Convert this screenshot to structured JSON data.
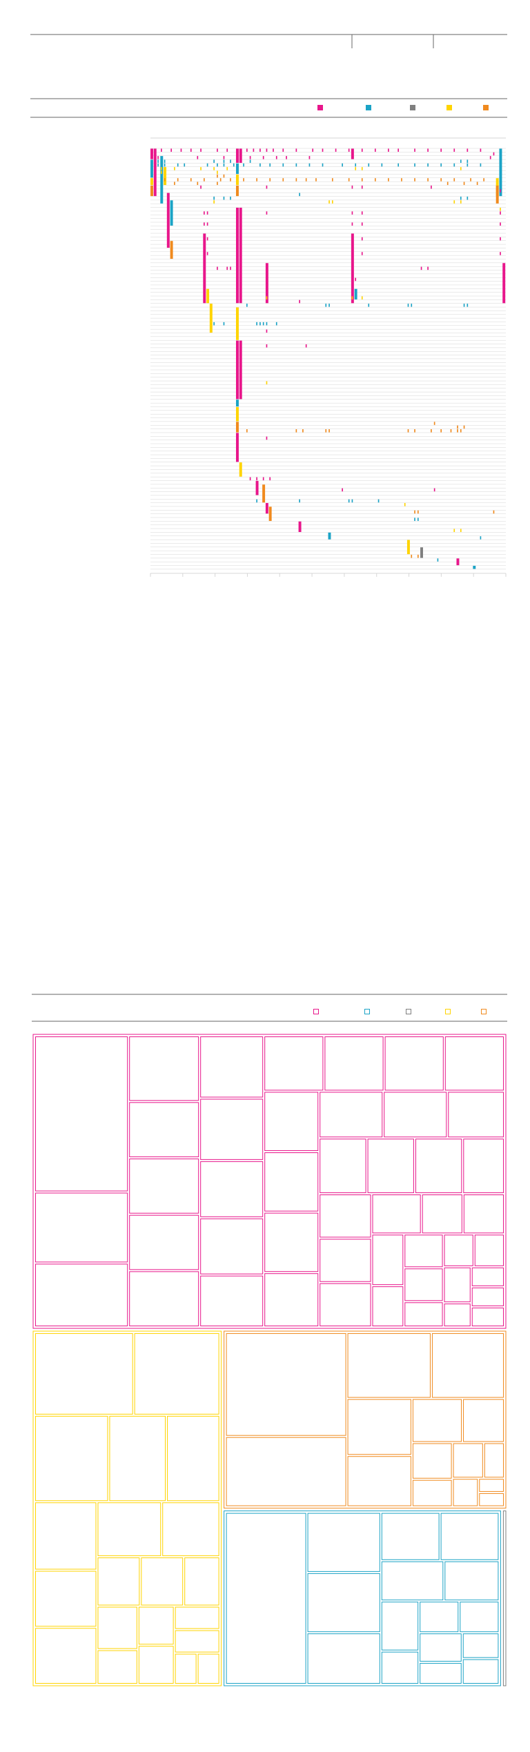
{
  "colors": {
    "magenta": "#e8168b",
    "cyan": "#1ba3c6",
    "gray": "#7f7f7f",
    "yellow": "#ffd400",
    "orange": "#f08a1e",
    "row_line": "#d6d6d6",
    "rule_dark": "#666666",
    "rule_light": "#aaaaaa"
  },
  "legend": {
    "keys": [
      "magenta",
      "cyan",
      "gray",
      "yellow",
      "orange"
    ]
  },
  "chart_data": [
    {
      "type": "heatmap",
      "title": "",
      "xlabel": "",
      "ylabel": "",
      "grid": true,
      "rows": 114,
      "columns": 108,
      "series": [
        "magenta",
        "cyan",
        "gray",
        "yellow",
        "orange"
      ],
      "segments": [
        {
          "rows": [
            0,
            2
          ],
          "col": 0,
          "series": "magenta"
        },
        {
          "rows": [
            3,
            7
          ],
          "col": 0,
          "series": "cyan"
        },
        {
          "rows": [
            8,
            9
          ],
          "col": 0,
          "series": "yellow"
        },
        {
          "rows": [
            10,
            12
          ],
          "col": 0,
          "series": "orange"
        },
        {
          "rows": [
            0,
            12
          ],
          "col": 1,
          "series": "magenta"
        },
        {
          "rows": [
            2,
            14
          ],
          "col": 3,
          "series": "cyan"
        },
        {
          "rows": [
            5,
            9
          ],
          "col": 4,
          "series": "yellow"
        },
        {
          "rows": [
            12,
            26
          ],
          "col": 5,
          "series": "magenta"
        },
        {
          "rows": [
            14,
            20
          ],
          "col": 6,
          "series": "cyan"
        },
        {
          "rows": [
            25,
            29
          ],
          "col": 6,
          "series": "orange"
        },
        {
          "rows": [
            23,
            41
          ],
          "col": 16,
          "series": "magenta"
        },
        {
          "rows": [
            38,
            41
          ],
          "col": 17,
          "series": "yellow"
        },
        {
          "rows": [
            42,
            49
          ],
          "col": 18,
          "series": "yellow"
        },
        {
          "rows": [
            0,
            3
          ],
          "col": 26,
          "series": "magenta"
        },
        {
          "rows": [
            4,
            6
          ],
          "col": 26,
          "series": "cyan"
        },
        {
          "rows": [
            7,
            9
          ],
          "col": 26,
          "series": "yellow"
        },
        {
          "rows": [
            10,
            12
          ],
          "col": 26,
          "series": "orange"
        },
        {
          "rows": [
            16,
            41
          ],
          "col": 26,
          "series": "magenta"
        },
        {
          "rows": [
            43,
            51
          ],
          "col": 26,
          "series": "yellow"
        },
        {
          "rows": [
            52,
            67
          ],
          "col": 26,
          "series": "magenta"
        },
        {
          "rows": [
            68,
            69
          ],
          "col": 26,
          "series": "cyan"
        },
        {
          "rows": [
            70,
            73
          ],
          "col": 26,
          "series": "yellow"
        },
        {
          "rows": [
            74,
            76
          ],
          "col": 26,
          "series": "orange"
        },
        {
          "rows": [
            77,
            84
          ],
          "col": 26,
          "series": "magenta"
        },
        {
          "rows": [
            85,
            88
          ],
          "col": 27,
          "series": "yellow"
        },
        {
          "rows": [
            0,
            3
          ],
          "col": 27,
          "series": "magenta"
        },
        {
          "rows": [
            16,
            41
          ],
          "col": 27,
          "series": "magenta"
        },
        {
          "rows": [
            52,
            67
          ],
          "col": 27,
          "series": "magenta"
        },
        {
          "rows": [
            31,
            41
          ],
          "col": 35,
          "series": "magenta"
        },
        {
          "rows": [
            0,
            2
          ],
          "col": 61,
          "series": "magenta"
        },
        {
          "rows": [
            23,
            41
          ],
          "col": 61,
          "series": "magenta"
        },
        {
          "rows": [
            38,
            40
          ],
          "col": 62,
          "series": "cyan"
        },
        {
          "rows": [
            0,
            12
          ],
          "col": 106,
          "series": "cyan"
        },
        {
          "rows": [
            8,
            12
          ],
          "col": 105,
          "series": "yellow"
        },
        {
          "rows": [
            10,
            14
          ],
          "col": 105,
          "series": "orange"
        },
        {
          "rows": [
            31,
            41
          ],
          "col": 107,
          "series": "magenta"
        },
        {
          "rows": [
            90,
            93
          ],
          "col": 32,
          "series": "magenta"
        },
        {
          "rows": [
            91,
            95
          ],
          "col": 34,
          "series": "orange"
        },
        {
          "rows": [
            96,
            98
          ],
          "col": 35,
          "series": "magenta"
        },
        {
          "rows": [
            97,
            100
          ],
          "col": 36,
          "series": "orange"
        },
        {
          "rows": [
            101,
            103
          ],
          "col": 45,
          "series": "magenta"
        },
        {
          "rows": [
            104,
            105
          ],
          "col": 54,
          "series": "cyan"
        },
        {
          "rows": [
            106,
            109
          ],
          "col": 78,
          "series": "yellow"
        },
        {
          "rows": [
            108,
            110
          ],
          "col": 82,
          "series": "gray"
        },
        {
          "rows": [
            111,
            112
          ],
          "col": 93,
          "series": "magenta"
        },
        {
          "rows": [
            113,
            113
          ],
          "col": 98,
          "series": "cyan"
        }
      ],
      "ticks": [
        {
          "row": 0,
          "series": "magenta",
          "cols": [
            3,
            6,
            9,
            12,
            15,
            20,
            23,
            29,
            31,
            33,
            35,
            37,
            40,
            44,
            49,
            52,
            56,
            60,
            64,
            68,
            72,
            75,
            80,
            84,
            88,
            92,
            96,
            100
          ]
        },
        {
          "row": 1,
          "series": "magenta",
          "cols": [
            104
          ]
        },
        {
          "row": 2,
          "series": "magenta",
          "cols": [
            2,
            14,
            22,
            30,
            34,
            38,
            41,
            48,
            103
          ]
        },
        {
          "row": 3,
          "series": "cyan",
          "cols": [
            2,
            4,
            19,
            22,
            24,
            30,
            94,
            96
          ]
        },
        {
          "row": 4,
          "series": "cyan",
          "cols": [
            2,
            4,
            8,
            10,
            17,
            20,
            22,
            25,
            28,
            33,
            36,
            40,
            44,
            48,
            52,
            58,
            62,
            66,
            70,
            75,
            80,
            84,
            88,
            92,
            96,
            100
          ]
        },
        {
          "row": 5,
          "series": "yellow",
          "cols": [
            3,
            7,
            15,
            19,
            23,
            62,
            64,
            94
          ]
        },
        {
          "row": 6,
          "series": "yellow",
          "cols": [
            3,
            20
          ]
        },
        {
          "row": 7,
          "series": "orange",
          "cols": [
            20,
            22
          ]
        },
        {
          "row": 8,
          "series": "orange",
          "cols": [
            4,
            8,
            12,
            16,
            21,
            24,
            28,
            32,
            36,
            40,
            44,
            47,
            50,
            55,
            60,
            64,
            68,
            72,
            76,
            80,
            84,
            88,
            92,
            97,
            101
          ]
        },
        {
          "row": 9,
          "series": "orange",
          "cols": [
            7,
            14,
            20,
            90,
            95,
            99
          ]
        },
        {
          "row": 10,
          "series": "magenta",
          "cols": [
            15,
            35,
            61,
            64,
            85
          ]
        },
        {
          "row": 11,
          "series": "magenta",
          "cols": [
            106
          ]
        },
        {
          "row": 12,
          "series": "cyan",
          "cols": [
            45
          ]
        },
        {
          "row": 13,
          "series": "cyan",
          "cols": [
            19,
            22,
            24,
            94,
            96
          ]
        },
        {
          "row": 14,
          "series": "yellow",
          "cols": [
            19,
            54,
            55,
            92,
            94
          ]
        },
        {
          "row": 16,
          "series": "yellow",
          "cols": [
            106
          ]
        },
        {
          "row": 17,
          "series": "magenta",
          "cols": [
            16,
            17,
            35,
            61,
            64,
            106
          ]
        },
        {
          "row": 20,
          "series": "magenta",
          "cols": [
            16,
            17,
            61,
            64,
            106
          ]
        },
        {
          "row": 24,
          "series": "magenta",
          "cols": [
            16,
            17,
            61,
            64,
            106
          ]
        },
        {
          "row": 28,
          "series": "magenta",
          "cols": [
            16,
            17,
            61,
            64,
            106
          ]
        },
        {
          "row": 32,
          "series": "magenta",
          "cols": [
            20,
            23,
            24,
            35,
            82,
            84
          ]
        },
        {
          "row": 35,
          "series": "magenta",
          "cols": [
            62
          ]
        },
        {
          "row": 40,
          "series": "yellow",
          "cols": [
            35,
            61,
            64
          ]
        },
        {
          "row": 41,
          "series": "magenta",
          "cols": [
            45
          ]
        },
        {
          "row": 42,
          "series": "cyan",
          "cols": [
            29,
            53,
            54,
            66,
            78,
            79,
            95,
            96
          ]
        },
        {
          "row": 47,
          "series": "cyan",
          "cols": [
            19,
            22,
            32,
            33,
            34,
            35,
            38
          ]
        },
        {
          "row": 49,
          "series": "magenta",
          "cols": [
            35
          ]
        },
        {
          "row": 53,
          "series": "magenta",
          "cols": [
            35,
            47
          ]
        },
        {
          "row": 63,
          "series": "yellow",
          "cols": [
            35
          ]
        },
        {
          "row": 74,
          "series": "orange",
          "cols": [
            86
          ]
        },
        {
          "row": 75,
          "series": "orange",
          "cols": [
            93,
            95
          ]
        },
        {
          "row": 76,
          "series": "orange",
          "cols": [
            29,
            44,
            46,
            53,
            54,
            78,
            80,
            85,
            88,
            91,
            93,
            94
          ]
        },
        {
          "row": 78,
          "series": "magenta",
          "cols": [
            35
          ]
        },
        {
          "row": 89,
          "series": "magenta",
          "cols": [
            30,
            32,
            34,
            36
          ]
        },
        {
          "row": 92,
          "series": "magenta",
          "cols": [
            58,
            86
          ]
        },
        {
          "row": 95,
          "series": "cyan",
          "cols": [
            32,
            45,
            60,
            61,
            69
          ]
        },
        {
          "row": 96,
          "series": "yellow",
          "cols": [
            77
          ]
        },
        {
          "row": 98,
          "series": "orange",
          "cols": [
            80,
            81,
            104
          ]
        },
        {
          "row": 100,
          "series": "cyan",
          "cols": [
            80,
            81
          ]
        },
        {
          "row": 103,
          "series": "yellow",
          "cols": [
            92,
            94
          ]
        },
        {
          "row": 105,
          "series": "cyan",
          "cols": [
            100
          ]
        },
        {
          "row": 110,
          "series": "orange",
          "cols": [
            79,
            81
          ]
        },
        {
          "row": 111,
          "series": "cyan",
          "cols": [
            87
          ]
        }
      ]
    },
    {
      "type": "treemap",
      "title": "",
      "series": [
        "magenta",
        "cyan",
        "gray",
        "yellow",
        "orange"
      ],
      "groups": [
        {
          "series": "magenta",
          "value": 45.5,
          "cells": [
            44,
            3,
            2,
            12,
            8,
            18,
            12,
            2,
            20,
            12,
            10,
            12,
            7,
            8,
            8,
            10,
            10,
            10,
            7,
            9,
            9,
            10,
            12,
            14,
            11,
            11,
            12,
            7,
            5,
            2,
            10,
            10,
            10,
            7,
            9,
            4,
            3,
            8,
            6,
            3,
            3,
            4,
            2,
            5,
            5,
            4
          ]
        },
        {
          "series": "cyan",
          "value": 16.0,
          "cells": [
            14,
            14,
            6,
            44,
            3,
            3,
            9,
            3,
            4,
            9,
            12,
            8,
            4,
            4,
            7,
            4
          ]
        },
        {
          "series": "gray",
          "value": 0.3,
          "cells": [
            0.3
          ]
        },
        {
          "series": "yellow",
          "value": 22.0,
          "cells": [
            20,
            18,
            4,
            2,
            9,
            23,
            14,
            12,
            10,
            13,
            10,
            10,
            6,
            4,
            4,
            3,
            6,
            5,
            5,
            3,
            2
          ]
        },
        {
          "series": "orange",
          "value": 16.5,
          "cells": [
            10,
            34,
            1,
            1,
            15,
            13,
            23,
            9,
            3,
            2,
            3,
            2,
            6,
            5,
            4
          ]
        }
      ]
    }
  ]
}
